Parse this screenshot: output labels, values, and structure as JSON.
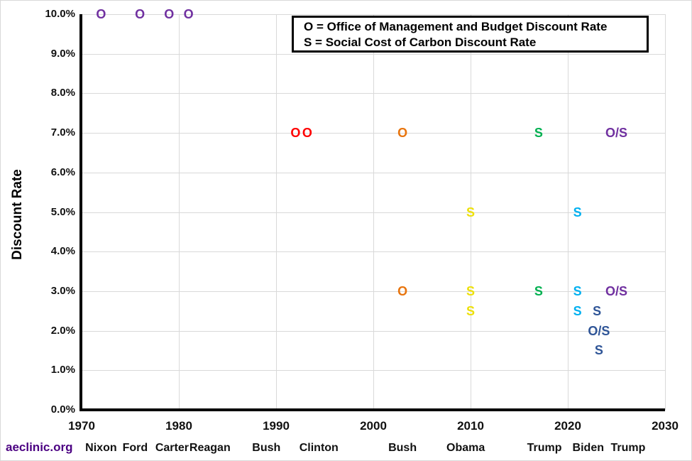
{
  "footer": {
    "text": "aeclinic.org",
    "color": "#4B0082"
  },
  "legend": {
    "line1": "O = Office of Management and Budget Discount Rate",
    "line2": "S = Social Cost of Carbon Discount Rate"
  },
  "chart_data": {
    "type": "scatter",
    "title": "",
    "xlabel": "",
    "ylabel": "Discount Rate",
    "xlim": [
      1970,
      2030
    ],
    "ylim": [
      0,
      10
    ],
    "grid": true,
    "gridline_color": "#d9d9d9",
    "x_ticks": [
      {
        "year": 1970,
        "label": "1970"
      },
      {
        "year": 1980,
        "label": "1980"
      },
      {
        "year": 1990,
        "label": "1990"
      },
      {
        "year": 2000,
        "label": "2000"
      },
      {
        "year": 2010,
        "label": "2010"
      },
      {
        "year": 2020,
        "label": "2020"
      },
      {
        "year": 2030,
        "label": "2030"
      }
    ],
    "y_ticks": [
      {
        "value": 0,
        "label": "0.0%"
      },
      {
        "value": 1,
        "label": "1.0%"
      },
      {
        "value": 2,
        "label": "2.0%"
      },
      {
        "value": 3,
        "label": "3.0%"
      },
      {
        "value": 4,
        "label": "4.0%"
      },
      {
        "value": 5,
        "label": "5.0%"
      },
      {
        "value": 6,
        "label": "6.0%"
      },
      {
        "value": 7,
        "label": "7.0%"
      },
      {
        "value": 8,
        "label": "8.0%"
      },
      {
        "value": 9,
        "label": "9.0%"
      },
      {
        "value": 10,
        "label": "10.0%"
      }
    ],
    "presidents": [
      {
        "name": "Nixon",
        "center_year": 1972.0
      },
      {
        "name": "Ford",
        "center_year": 1975.5
      },
      {
        "name": "Carter",
        "center_year": 1979.3
      },
      {
        "name": "Reagan",
        "center_year": 1983.2
      },
      {
        "name": "Bush",
        "center_year": 1989.0
      },
      {
        "name": "Clinton",
        "center_year": 1994.4
      },
      {
        "name": "Bush",
        "center_year": 2003.0
      },
      {
        "name": "Obama",
        "center_year": 2009.5
      },
      {
        "name": "Trump",
        "center_year": 2017.6
      },
      {
        "name": "Biden",
        "center_year": 2022.1
      },
      {
        "name": "Trump",
        "center_year": 2026.2
      }
    ],
    "colors": {
      "purple": "#7030A0",
      "red": "#FE0000",
      "orange": "#E8740D",
      "yellow": "#EDE00A",
      "green": "#00B050",
      "cyan": "#00B0F0",
      "navy": "#2F5597"
    },
    "points": [
      {
        "label": "O",
        "series": "OMB",
        "year": 1972,
        "rate": 10.0,
        "color": "purple"
      },
      {
        "label": "O",
        "series": "OMB",
        "year": 1976,
        "rate": 10.0,
        "color": "purple"
      },
      {
        "label": "O",
        "series": "OMB",
        "year": 1979,
        "rate": 10.0,
        "color": "purple"
      },
      {
        "label": "O",
        "series": "OMB",
        "year": 1981,
        "rate": 10.0,
        "color": "purple"
      },
      {
        "label": "O",
        "series": "OMB",
        "year": 1992,
        "rate": 7.0,
        "color": "red"
      },
      {
        "label": "O",
        "series": "OMB",
        "year": 1993.2,
        "rate": 7.0,
        "color": "red"
      },
      {
        "label": "O",
        "series": "OMB",
        "year": 2003,
        "rate": 7.0,
        "color": "orange"
      },
      {
        "label": "O",
        "series": "OMB",
        "year": 2003,
        "rate": 3.0,
        "color": "orange"
      },
      {
        "label": "S",
        "series": "SCC",
        "year": 2010,
        "rate": 5.0,
        "color": "yellow"
      },
      {
        "label": "S",
        "series": "SCC",
        "year": 2010,
        "rate": 3.0,
        "color": "yellow"
      },
      {
        "label": "S",
        "series": "SCC",
        "year": 2010,
        "rate": 2.5,
        "color": "yellow"
      },
      {
        "label": "S",
        "series": "SCC",
        "year": 2017,
        "rate": 7.0,
        "color": "green"
      },
      {
        "label": "S",
        "series": "SCC",
        "year": 2017,
        "rate": 3.0,
        "color": "green"
      },
      {
        "label": "S",
        "series": "SCC",
        "year": 2021,
        "rate": 5.0,
        "color": "cyan"
      },
      {
        "label": "S",
        "series": "SCC",
        "year": 2021,
        "rate": 3.0,
        "color": "cyan"
      },
      {
        "label": "S",
        "series": "SCC",
        "year": 2021,
        "rate": 2.5,
        "color": "cyan"
      },
      {
        "label": "S",
        "series": "SCC",
        "year": 2023,
        "rate": 2.5,
        "color": "navy"
      },
      {
        "label": "O/S",
        "series": "OMB+SCC",
        "year": 2023.2,
        "rate": 2.0,
        "color": "navy"
      },
      {
        "label": "S",
        "series": "SCC",
        "year": 2023.2,
        "rate": 1.5,
        "color": "navy"
      },
      {
        "label": "O/S",
        "series": "OMB+SCC",
        "year": 2025,
        "rate": 7.0,
        "color": "purple"
      },
      {
        "label": "O/S",
        "series": "OMB+SCC",
        "year": 2025,
        "rate": 3.0,
        "color": "purple"
      }
    ]
  }
}
